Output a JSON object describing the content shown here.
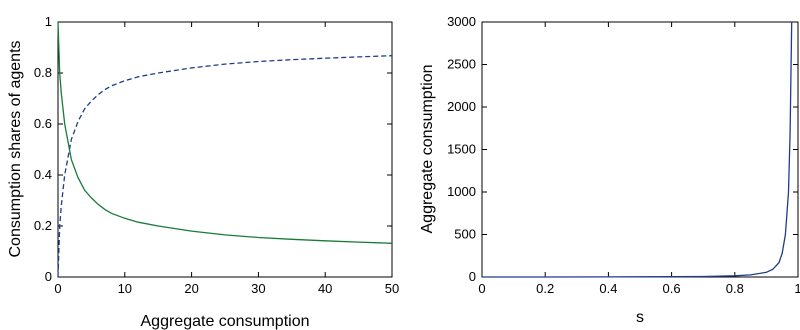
{
  "chart_data": [
    {
      "type": "line",
      "xlabel": "Aggregate consumption",
      "ylabel": "Consumption shares of agents",
      "xlim": [
        0,
        50
      ],
      "ylim": [
        0,
        1
      ],
      "xticks": [
        "0",
        "10",
        "20",
        "30",
        "40",
        "50"
      ],
      "yticks": [
        "0",
        "0.2",
        "0.4",
        "0.6",
        "0.8",
        "1"
      ],
      "grid": false,
      "series": [
        {
          "style": "dashed",
          "color": "#1f3c8f",
          "x": [
            0,
            0.25,
            0.5,
            1,
            2,
            3,
            4,
            5,
            6,
            7,
            8,
            10,
            12,
            15,
            20,
            25,
            30,
            35,
            40,
            45,
            50
          ],
          "y": [
            0,
            0.2,
            0.28,
            0.4,
            0.54,
            0.61,
            0.66,
            0.69,
            0.715,
            0.735,
            0.75,
            0.77,
            0.785,
            0.8,
            0.82,
            0.835,
            0.845,
            0.852,
            0.858,
            0.863,
            0.868
          ]
        },
        {
          "style": "solid",
          "color": "#1a7a3a",
          "x": [
            0,
            0.25,
            0.5,
            1,
            2,
            3,
            4,
            5,
            6,
            7,
            8,
            10,
            12,
            15,
            20,
            25,
            30,
            35,
            40,
            45,
            50
          ],
          "y": [
            1,
            0.8,
            0.72,
            0.6,
            0.46,
            0.39,
            0.34,
            0.31,
            0.285,
            0.265,
            0.25,
            0.23,
            0.215,
            0.2,
            0.18,
            0.165,
            0.155,
            0.148,
            0.142,
            0.137,
            0.132
          ]
        }
      ]
    },
    {
      "type": "line",
      "xlabel": "s",
      "ylabel": "Aggregate consumption",
      "xlim": [
        0,
        1
      ],
      "ylim": [
        0,
        3000
      ],
      "xticks": [
        "0",
        "0.2",
        "0.4",
        "0.6",
        "0.8",
        "1"
      ],
      "yticks": [
        "0",
        "500",
        "1000",
        "1500",
        "2000",
        "2500",
        "3000"
      ],
      "grid": false,
      "series": [
        {
          "style": "solid",
          "color": "#1f3c8f",
          "x": [
            0,
            0.2,
            0.4,
            0.6,
            0.7,
            0.8,
            0.85,
            0.9,
            0.92,
            0.94,
            0.95,
            0.96,
            0.97,
            0.975,
            0.98
          ],
          "y": [
            0,
            0.5,
            1,
            3,
            6,
            14,
            25,
            55,
            90,
            170,
            280,
            500,
            1000,
            1700,
            3000
          ]
        }
      ]
    }
  ]
}
